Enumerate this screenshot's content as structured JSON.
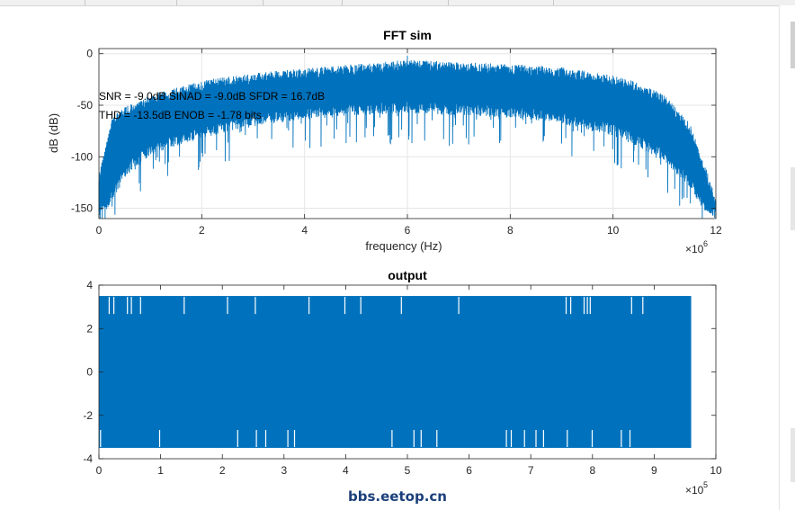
{
  "chart_data": [
    {
      "type": "line",
      "title": "FFT sim",
      "xlabel": "frequency (Hz)",
      "ylabel": "dB (dB)",
      "x_exponent_label": "×10",
      "x_exponent": "6",
      "xlim": [
        0,
        12000000
      ],
      "ylim": [
        -160,
        5
      ],
      "x_ticks": [
        0,
        2000000,
        4000000,
        6000000,
        8000000,
        10000000,
        12000000
      ],
      "x_tick_labels": [
        "0",
        "2",
        "4",
        "6",
        "8",
        "10",
        "12"
      ],
      "y_ticks": [
        0,
        -50,
        -100,
        -150
      ],
      "y_tick_labels": [
        "0",
        "-50",
        "-100",
        "-150"
      ],
      "grid": true,
      "annotations": [
        "SNR = -9.0dB SINAD = -9.0dB SFDR = 16.7dB",
        "THD = -13.5dB ENOB = -1.78 bits"
      ],
      "series_color": "#0072bd",
      "envelope": {
        "x": [
          0,
          250000,
          500000,
          1000000,
          2000000,
          3000000,
          4000000,
          5000000,
          6000000,
          7000000,
          8000000,
          9000000,
          10000000,
          10500000,
          11000000,
          11500000,
          11800000,
          12000000
        ],
        "top": [
          -118,
          -62,
          -52,
          -40,
          -26,
          -19,
          -14,
          -10,
          -6,
          -8,
          -10,
          -13,
          -21,
          -28,
          -40,
          -68,
          -110,
          -140
        ],
        "bottom": [
          -160,
          -145,
          -120,
          -98,
          -82,
          -70,
          -64,
          -60,
          -58,
          -60,
          -62,
          -68,
          -80,
          -90,
          -105,
          -130,
          -155,
          -160
        ],
        "spike": -2
      }
    },
    {
      "type": "line",
      "title": "output",
      "xlabel": "",
      "ylabel": "",
      "x_exponent_label": "×10",
      "x_exponent": "5",
      "xlim": [
        0,
        1000000
      ],
      "ylim": [
        -4,
        4
      ],
      "x_ticks": [
        0,
        100000,
        200000,
        300000,
        400000,
        500000,
        600000,
        700000,
        800000,
        900000,
        1000000
      ],
      "x_tick_labels": [
        "0",
        "1",
        "2",
        "3",
        "4",
        "5",
        "6",
        "7",
        "8",
        "9",
        "10"
      ],
      "y_ticks": [
        4,
        2,
        0,
        -2,
        -4
      ],
      "y_tick_labels": [
        "4",
        "2",
        "0",
        "-2",
        "-4"
      ],
      "grid": false,
      "series_color": "#0072bd",
      "signal": {
        "x_end": 960000,
        "high": 3.5,
        "low": -3.5
      }
    }
  ],
  "watermark": "bbs.eetop.cn"
}
